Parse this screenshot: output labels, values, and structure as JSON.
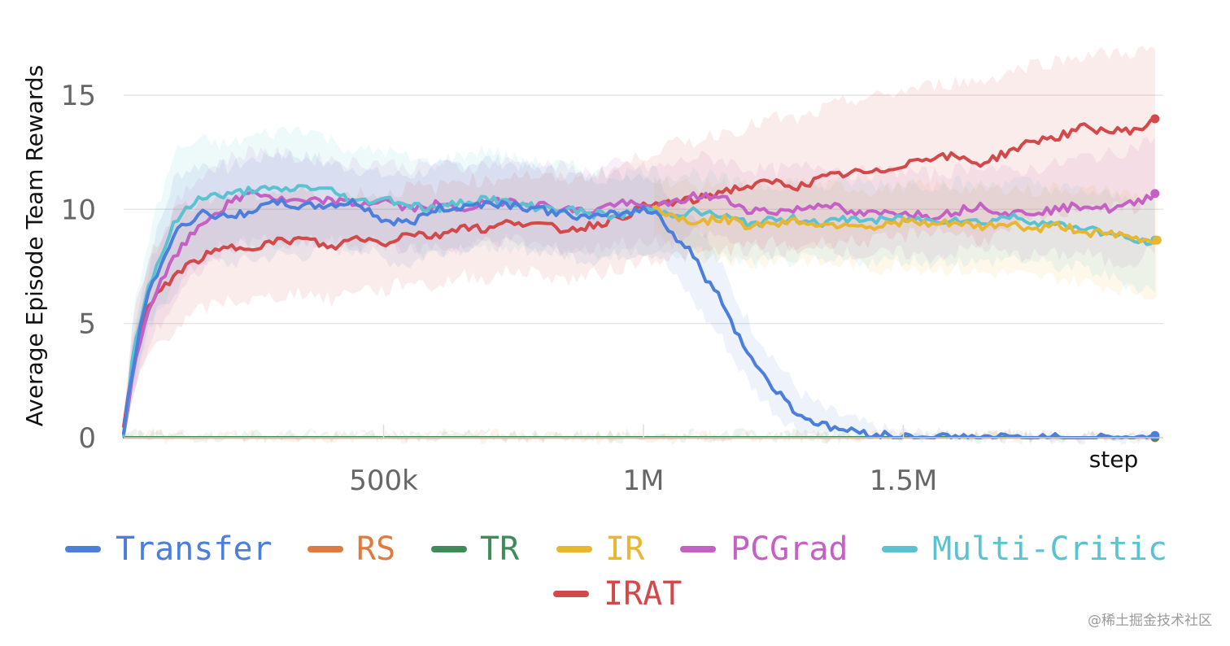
{
  "chart_data": {
    "type": "line",
    "title": "",
    "ylabel": "Average Episode Team Rewards",
    "xlabel": "step",
    "xlim": [
      0,
      2000000
    ],
    "ylim": [
      0,
      17
    ],
    "yticks": [
      0,
      5,
      10,
      15
    ],
    "ytick_labels": [
      "0",
      "5",
      "10",
      "15"
    ],
    "xticks": [
      500000,
      1000000,
      1500000
    ],
    "xtick_labels": [
      "500k",
      "1M",
      "1.5M"
    ],
    "grid": "horizontal",
    "legend_position": "bottom",
    "series": [
      {
        "name": "Transfer",
        "color": "#4c7fdc",
        "x": [
          0,
          20000,
          50000,
          100000,
          150000,
          200000,
          250000,
          300000,
          350000,
          400000,
          450000,
          500000,
          550000,
          600000,
          650000,
          700000,
          750000,
          800000,
          850000,
          900000,
          950000,
          1000000,
          1030000,
          1060000,
          1090000,
          1120000,
          1150000,
          1180000,
          1210000,
          1250000,
          1300000,
          1350000,
          1400000,
          1450000,
          1500000,
          1600000,
          1700000,
          1800000,
          1900000,
          1990000
        ],
        "y": [
          0.2,
          3.5,
          6.5,
          9.0,
          9.9,
          9.6,
          10.0,
          10.3,
          10.1,
          10.2,
          10.3,
          9.5,
          9.4,
          10.0,
          10.1,
          10.3,
          10.2,
          10.0,
          9.8,
          9.6,
          9.8,
          10.0,
          9.8,
          8.8,
          8.2,
          7.0,
          6.0,
          4.6,
          3.4,
          2.2,
          1.0,
          0.5,
          0.3,
          0.15,
          0.05,
          0.02,
          0.01,
          0.0,
          0.0,
          0.0
        ],
        "upper": [
          0.5,
          5.0,
          8.0,
          11.5,
          12.0,
          11.8,
          12.2,
          12.5,
          12.3,
          12.0,
          11.8,
          11.5,
          11.5,
          11.8,
          12.0,
          12.2,
          12.0,
          11.8,
          11.5,
          11.4,
          11.5,
          11.6,
          11.2,
          10.5,
          10.0,
          8.8,
          7.5,
          6.0,
          4.8,
          3.5,
          2.0,
          1.2,
          0.8,
          0.4,
          0.2,
          0.1,
          0.05,
          0.02,
          0.02,
          0.02
        ],
        "lower": [
          0.0,
          2.0,
          5.0,
          6.5,
          7.8,
          7.6,
          7.8,
          8.0,
          8.0,
          8.2,
          8.4,
          7.8,
          7.6,
          8.2,
          8.4,
          8.5,
          8.4,
          8.2,
          8.0,
          7.8,
          8.0,
          8.2,
          8.0,
          7.0,
          6.2,
          5.2,
          4.4,
          3.2,
          2.2,
          1.2,
          0.3,
          0.1,
          0.05,
          0.0,
          0.0,
          0.0,
          0.0,
          0.0,
          0.0,
          0.0
        ]
      },
      {
        "name": "RS",
        "color": "#e07b3f",
        "x": [
          0,
          500000,
          1000000,
          1500000,
          1990000
        ],
        "y": [
          0.0,
          0.0,
          0.0,
          0.0,
          0.0
        ],
        "upper": [
          0.05,
          0.05,
          0.05,
          0.05,
          0.05
        ],
        "lower": [
          0.0,
          0.0,
          0.0,
          0.0,
          0.0
        ]
      },
      {
        "name": "TR",
        "color": "#3d8c5a",
        "x": [
          0,
          500000,
          1000000,
          1500000,
          1990000
        ],
        "y": [
          0.03,
          0.03,
          0.03,
          0.03,
          0.03
        ],
        "upper": [
          0.08,
          0.08,
          0.08,
          0.08,
          0.08
        ],
        "lower": [
          0.0,
          0.0,
          0.0,
          0.0,
          0.0
        ]
      },
      {
        "name": "IR",
        "color": "#e8b630",
        "x": [
          1020000,
          1060000,
          1100000,
          1150000,
          1200000,
          1250000,
          1300000,
          1350000,
          1400000,
          1450000,
          1500000,
          1550000,
          1600000,
          1650000,
          1700000,
          1750000,
          1800000,
          1850000,
          1900000,
          1950000,
          1990000
        ],
        "y": [
          10.1,
          9.7,
          9.4,
          9.6,
          9.3,
          9.4,
          9.5,
          9.3,
          9.4,
          9.2,
          9.5,
          9.3,
          9.4,
          9.2,
          9.4,
          9.1,
          9.3,
          9.0,
          8.9,
          8.7,
          8.6
        ],
        "upper": [
          11.5,
          11.2,
          11.0,
          11.2,
          11.0,
          11.0,
          11.2,
          11.0,
          11.0,
          10.8,
          11.0,
          11.0,
          11.0,
          10.8,
          11.0,
          10.8,
          11.0,
          10.8,
          10.8,
          10.6,
          10.5
        ],
        "lower": [
          8.8,
          8.3,
          7.9,
          8.0,
          7.6,
          7.8,
          7.8,
          7.6,
          7.6,
          7.4,
          7.6,
          7.4,
          7.4,
          7.2,
          7.2,
          7.0,
          7.0,
          6.8,
          6.6,
          6.4,
          6.2
        ]
      },
      {
        "name": "PCGrad",
        "color": "#c560c5",
        "x": [
          0,
          20000,
          50000,
          100000,
          150000,
          200000,
          250000,
          300000,
          350000,
          400000,
          450000,
          500000,
          550000,
          600000,
          650000,
          700000,
          750000,
          800000,
          850000,
          900000,
          950000,
          1000000,
          1050000,
          1100000,
          1150000,
          1200000,
          1250000,
          1300000,
          1350000,
          1400000,
          1450000,
          1500000,
          1550000,
          1600000,
          1650000,
          1700000,
          1750000,
          1800000,
          1850000,
          1900000,
          1950000,
          1990000
        ],
        "y": [
          0.1,
          3.2,
          5.8,
          8.0,
          9.4,
          10.2,
          10.8,
          10.4,
          10.3,
          10.4,
          10.2,
          10.4,
          10.0,
          10.2,
          10.0,
          10.3,
          10.4,
          10.2,
          10.0,
          9.9,
          10.3,
          10.1,
          10.2,
          10.6,
          10.5,
          10.0,
          9.9,
          10.0,
          10.3,
          9.8,
          9.8,
          9.9,
          9.7,
          9.9,
          10.2,
          9.8,
          9.9,
          10.0,
          10.2,
          10.0,
          10.3,
          10.8
        ],
        "upper": [
          0.4,
          4.8,
          7.6,
          10.2,
          11.6,
          12.2,
          12.6,
          12.4,
          12.2,
          12.2,
          12.0,
          12.1,
          11.8,
          12.0,
          11.8,
          12.0,
          12.1,
          12.0,
          11.8,
          11.6,
          12.0,
          11.8,
          11.9,
          12.3,
          12.2,
          11.8,
          11.7,
          11.8,
          12.0,
          11.6,
          11.6,
          11.7,
          11.5,
          11.7,
          12.0,
          11.6,
          11.8,
          12.0,
          12.3,
          12.4,
          12.8,
          13.2
        ],
        "lower": [
          0.0,
          1.8,
          4.2,
          6.0,
          7.4,
          8.2,
          8.8,
          8.4,
          8.4,
          8.6,
          8.4,
          8.6,
          8.2,
          8.4,
          8.2,
          8.6,
          8.7,
          8.4,
          8.2,
          8.2,
          8.6,
          8.4,
          8.5,
          8.9,
          8.8,
          8.2,
          8.1,
          8.2,
          8.6,
          8.0,
          8.0,
          8.1,
          7.9,
          8.1,
          8.4,
          8.0,
          8.0,
          8.0,
          8.1,
          7.6,
          7.8,
          8.4
        ]
      },
      {
        "name": "Multi-Critic",
        "color": "#5bc2d2",
        "x": [
          0,
          20000,
          50000,
          100000,
          150000,
          200000,
          250000,
          300000,
          350000,
          400000,
          450000,
          500000,
          550000,
          600000,
          650000,
          700000,
          750000,
          800000,
          850000,
          900000,
          950000,
          1000000,
          1050000,
          1100000,
          1150000,
          1200000,
          1250000,
          1300000,
          1350000,
          1400000,
          1450000,
          1500000,
          1550000,
          1600000,
          1650000,
          1700000,
          1750000,
          1800000,
          1850000,
          1900000,
          1950000,
          1990000
        ],
        "y": [
          0.1,
          4.0,
          6.8,
          9.5,
          10.6,
          10.6,
          10.9,
          10.8,
          11.0,
          10.8,
          10.3,
          10.5,
          10.2,
          10.0,
          10.3,
          10.5,
          10.2,
          10.1,
          10.0,
          9.8,
          9.7,
          10.0,
          9.8,
          9.9,
          9.7,
          9.4,
          9.5,
          9.6,
          9.4,
          9.6,
          9.5,
          9.6,
          9.5,
          9.6,
          9.4,
          9.7,
          9.5,
          9.3,
          9.2,
          8.9,
          8.6,
          8.5
        ],
        "upper": [
          0.4,
          5.6,
          9.0,
          12.6,
          13.0,
          12.8,
          13.2,
          13.4,
          13.6,
          13.0,
          12.5,
          12.6,
          12.2,
          12.0,
          12.4,
          12.6,
          12.2,
          12.0,
          11.9,
          11.6,
          11.5,
          11.8,
          11.5,
          11.6,
          11.3,
          11.0,
          11.1,
          11.2,
          11.0,
          11.2,
          11.1,
          11.2,
          11.1,
          11.2,
          11.0,
          11.3,
          11.1,
          10.9,
          10.8,
          10.6,
          10.4,
          10.3
        ],
        "lower": [
          0.0,
          2.4,
          4.8,
          7.0,
          8.2,
          8.4,
          8.6,
          8.4,
          8.6,
          8.6,
          8.2,
          8.4,
          8.2,
          8.0,
          8.3,
          8.4,
          8.2,
          8.2,
          8.1,
          8.0,
          7.9,
          8.2,
          8.0,
          8.1,
          7.9,
          7.6,
          7.7,
          7.8,
          7.6,
          7.8,
          7.7,
          7.8,
          7.7,
          7.8,
          7.6,
          7.9,
          7.7,
          7.5,
          7.4,
          7.0,
          6.6,
          6.5
        ]
      },
      {
        "name": "IRAT",
        "color": "#d34848",
        "x": [
          0,
          20000,
          50000,
          100000,
          150000,
          200000,
          250000,
          300000,
          350000,
          400000,
          450000,
          500000,
          550000,
          600000,
          650000,
          700000,
          750000,
          800000,
          850000,
          900000,
          950000,
          1000000,
          1050000,
          1100000,
          1150000,
          1200000,
          1250000,
          1300000,
          1350000,
          1400000,
          1450000,
          1500000,
          1550000,
          1600000,
          1650000,
          1700000,
          1750000,
          1800000,
          1850000,
          1900000,
          1950000,
          1990000
        ],
        "y": [
          0.5,
          3.8,
          5.8,
          7.2,
          7.9,
          8.3,
          8.4,
          8.6,
          8.7,
          8.3,
          8.8,
          8.5,
          9.0,
          8.8,
          9.3,
          9.1,
          9.5,
          9.3,
          9.1,
          9.3,
          9.6,
          10.1,
          10.3,
          10.4,
          10.8,
          11.0,
          11.2,
          11.0,
          11.4,
          11.6,
          11.6,
          12.0,
          12.3,
          12.3,
          12.0,
          12.5,
          13.0,
          13.2,
          13.6,
          13.4,
          13.5,
          13.9
        ],
        "upper": [
          1.0,
          5.5,
          8.0,
          10.0,
          10.4,
          10.6,
          10.6,
          10.8,
          10.8,
          10.4,
          10.8,
          10.6,
          11.0,
          10.9,
          11.4,
          11.2,
          11.6,
          11.4,
          11.3,
          11.5,
          11.8,
          12.4,
          12.8,
          13.0,
          13.4,
          13.6,
          14.0,
          13.9,
          14.4,
          14.8,
          14.9,
          15.2,
          15.4,
          15.6,
          15.6,
          16.0,
          16.4,
          16.5,
          16.8,
          16.8,
          16.9,
          17.0
        ],
        "lower": [
          0.0,
          2.0,
          3.8,
          4.8,
          5.6,
          6.0,
          6.0,
          6.2,
          6.4,
          6.0,
          6.6,
          6.4,
          6.9,
          6.6,
          7.1,
          7.0,
          7.3,
          7.2,
          6.9,
          7.1,
          7.4,
          7.8,
          7.9,
          8.0,
          8.2,
          8.4,
          8.5,
          8.2,
          8.6,
          8.6,
          8.6,
          8.8,
          9.1,
          9.0,
          8.6,
          9.0,
          9.5,
          9.8,
          10.2,
          10.0,
          10.1,
          10.6
        ]
      }
    ]
  },
  "watermark": "@稀土掘金技术社区"
}
